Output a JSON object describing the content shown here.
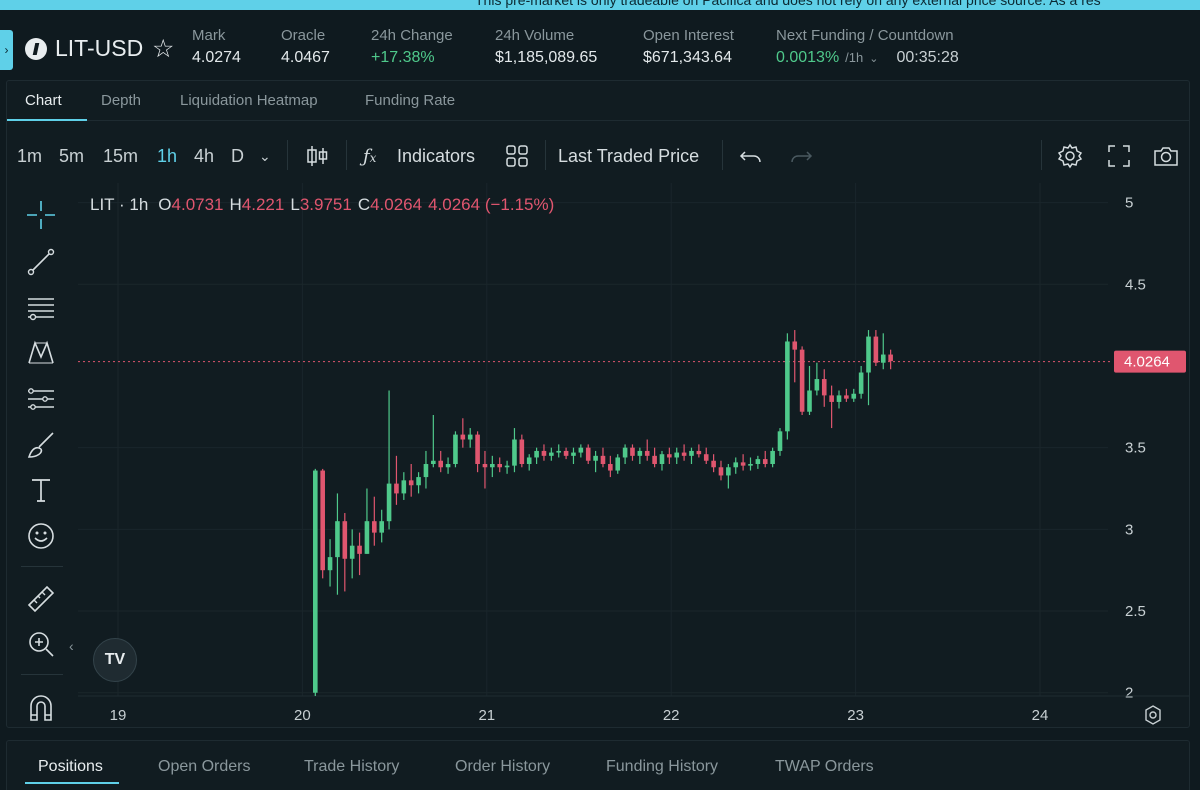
{
  "banner": {
    "text": "This pre-market is only tradeable on Pacifica and does not rely on any external price source. As a res"
  },
  "market": {
    "pair": "LIT-USD",
    "stats": [
      {
        "label": "Mark",
        "value": "4.0274"
      },
      {
        "label": "Oracle",
        "value": "4.0467"
      },
      {
        "label": "24h Change",
        "value": "+17.38%"
      },
      {
        "label": "24h Volume",
        "value": "$1,185,089.65"
      },
      {
        "label": "Open Interest",
        "value": "$671,343.64"
      }
    ],
    "funding": {
      "label": "Next Funding / Countdown",
      "rate": "0.0013%",
      "unit": "/1h",
      "countdown": "00:35:28"
    }
  },
  "tabs": [
    "Chart",
    "Depth",
    "Liquidation Heatmap",
    "Funding Rate"
  ],
  "toolbar": {
    "timeframes": [
      "1m",
      "5m",
      "15m",
      "1h",
      "4h",
      "D"
    ],
    "active_timeframe": "1h",
    "indicators_label": "Indicators",
    "price_source": "Last Traded Price"
  },
  "legend": {
    "symbol": "LIT · 1h",
    "o_key": "O",
    "open": "4.0731",
    "h_key": "H",
    "high": "4.221",
    "l_key": "L",
    "low": "3.9751",
    "c_key": "C",
    "close": "4.0264",
    "change": "4.0264 (−1.15%)"
  },
  "chart_data": {
    "type": "candlestick",
    "title": "",
    "x_ticks": [
      "19",
      "20",
      "21",
      "22",
      "23",
      "24"
    ],
    "y_ticks": [
      "5",
      "4.5",
      "3.5",
      "3",
      "2.5",
      "2"
    ],
    "ylim": [
      1.98,
      5.12
    ],
    "last_price": "4.0264",
    "colors": {
      "up": "#4fc98b",
      "down": "#e0566f"
    },
    "candles": [
      {
        "t": 20.07,
        "o": 2.0,
        "h": 3.37,
        "l": 1.98,
        "c": 3.36
      },
      {
        "t": 20.11,
        "o": 3.36,
        "h": 3.37,
        "l": 2.7,
        "c": 2.75
      },
      {
        "t": 20.15,
        "o": 2.75,
        "h": 2.94,
        "l": 2.65,
        "c": 2.83
      },
      {
        "t": 20.19,
        "o": 2.83,
        "h": 3.22,
        "l": 2.6,
        "c": 3.05
      },
      {
        "t": 20.23,
        "o": 3.05,
        "h": 3.1,
        "l": 2.62,
        "c": 2.82
      },
      {
        "t": 20.27,
        "o": 2.82,
        "h": 3.0,
        "l": 2.7,
        "c": 2.9
      },
      {
        "t": 20.31,
        "o": 2.9,
        "h": 2.98,
        "l": 2.72,
        "c": 2.85
      },
      {
        "t": 20.35,
        "o": 2.85,
        "h": 3.25,
        "l": 2.85,
        "c": 3.05
      },
      {
        "t": 20.39,
        "o": 3.05,
        "h": 3.2,
        "l": 2.9,
        "c": 2.98
      },
      {
        "t": 20.43,
        "o": 2.98,
        "h": 3.12,
        "l": 2.92,
        "c": 3.05
      },
      {
        "t": 20.47,
        "o": 3.05,
        "h": 3.85,
        "l": 3.0,
        "c": 3.28
      },
      {
        "t": 20.51,
        "o": 3.28,
        "h": 3.45,
        "l": 3.15,
        "c": 3.22
      },
      {
        "t": 20.55,
        "o": 3.22,
        "h": 3.35,
        "l": 3.18,
        "c": 3.3
      },
      {
        "t": 20.59,
        "o": 3.3,
        "h": 3.4,
        "l": 3.2,
        "c": 3.27
      },
      {
        "t": 20.63,
        "o": 3.27,
        "h": 3.35,
        "l": 3.22,
        "c": 3.32
      },
      {
        "t": 20.67,
        "o": 3.32,
        "h": 3.48,
        "l": 3.25,
        "c": 3.4
      },
      {
        "t": 20.71,
        "o": 3.4,
        "h": 3.7,
        "l": 3.38,
        "c": 3.42
      },
      {
        "t": 20.75,
        "o": 3.42,
        "h": 3.48,
        "l": 3.35,
        "c": 3.38
      },
      {
        "t": 20.79,
        "o": 3.38,
        "h": 3.44,
        "l": 3.34,
        "c": 3.4
      },
      {
        "t": 20.83,
        "o": 3.4,
        "h": 3.6,
        "l": 3.38,
        "c": 3.58
      },
      {
        "t": 20.87,
        "o": 3.58,
        "h": 3.68,
        "l": 3.5,
        "c": 3.55
      },
      {
        "t": 20.91,
        "o": 3.55,
        "h": 3.62,
        "l": 3.5,
        "c": 3.58
      },
      {
        "t": 20.95,
        "o": 3.58,
        "h": 3.6,
        "l": 3.35,
        "c": 3.4
      },
      {
        "t": 20.99,
        "o": 3.4,
        "h": 3.48,
        "l": 3.25,
        "c": 3.38
      },
      {
        "t": 21.03,
        "o": 3.38,
        "h": 3.45,
        "l": 3.32,
        "c": 3.4
      },
      {
        "t": 21.07,
        "o": 3.4,
        "h": 3.44,
        "l": 3.35,
        "c": 3.38
      },
      {
        "t": 21.11,
        "o": 3.38,
        "h": 3.42,
        "l": 3.34,
        "c": 3.39
      },
      {
        "t": 21.15,
        "o": 3.39,
        "h": 3.62,
        "l": 3.35,
        "c": 3.55
      },
      {
        "t": 21.19,
        "o": 3.55,
        "h": 3.58,
        "l": 3.38,
        "c": 3.4
      },
      {
        "t": 21.23,
        "o": 3.4,
        "h": 3.46,
        "l": 3.36,
        "c": 3.44
      },
      {
        "t": 21.27,
        "o": 3.44,
        "h": 3.5,
        "l": 3.4,
        "c": 3.48
      },
      {
        "t": 21.31,
        "o": 3.48,
        "h": 3.52,
        "l": 3.42,
        "c": 3.45
      },
      {
        "t": 21.35,
        "o": 3.45,
        "h": 3.5,
        "l": 3.42,
        "c": 3.47
      },
      {
        "t": 21.39,
        "o": 3.47,
        "h": 3.52,
        "l": 3.44,
        "c": 3.48
      },
      {
        "t": 21.43,
        "o": 3.48,
        "h": 3.5,
        "l": 3.43,
        "c": 3.45
      },
      {
        "t": 21.47,
        "o": 3.45,
        "h": 3.5,
        "l": 3.4,
        "c": 3.47
      },
      {
        "t": 21.51,
        "o": 3.47,
        "h": 3.52,
        "l": 3.44,
        "c": 3.5
      },
      {
        "t": 21.55,
        "o": 3.5,
        "h": 3.52,
        "l": 3.4,
        "c": 3.42
      },
      {
        "t": 21.59,
        "o": 3.42,
        "h": 3.48,
        "l": 3.35,
        "c": 3.45
      },
      {
        "t": 21.63,
        "o": 3.45,
        "h": 3.5,
        "l": 3.38,
        "c": 3.4
      },
      {
        "t": 21.67,
        "o": 3.4,
        "h": 3.45,
        "l": 3.32,
        "c": 3.36
      },
      {
        "t": 21.71,
        "o": 3.36,
        "h": 3.46,
        "l": 3.34,
        "c": 3.44
      },
      {
        "t": 21.75,
        "o": 3.44,
        "h": 3.52,
        "l": 3.4,
        "c": 3.5
      },
      {
        "t": 21.79,
        "o": 3.5,
        "h": 3.52,
        "l": 3.42,
        "c": 3.45
      },
      {
        "t": 21.83,
        "o": 3.45,
        "h": 3.5,
        "l": 3.4,
        "c": 3.48
      },
      {
        "t": 21.87,
        "o": 3.48,
        "h": 3.55,
        "l": 3.42,
        "c": 3.45
      },
      {
        "t": 21.91,
        "o": 3.45,
        "h": 3.5,
        "l": 3.38,
        "c": 3.4
      },
      {
        "t": 21.95,
        "o": 3.4,
        "h": 3.48,
        "l": 3.36,
        "c": 3.46
      },
      {
        "t": 21.99,
        "o": 3.46,
        "h": 3.5,
        "l": 3.4,
        "c": 3.44
      },
      {
        "t": 22.03,
        "o": 3.44,
        "h": 3.5,
        "l": 3.4,
        "c": 3.47
      },
      {
        "t": 22.07,
        "o": 3.47,
        "h": 3.52,
        "l": 3.42,
        "c": 3.45
      },
      {
        "t": 22.11,
        "o": 3.45,
        "h": 3.5,
        "l": 3.4,
        "c": 3.48
      },
      {
        "t": 22.15,
        "o": 3.48,
        "h": 3.52,
        "l": 3.44,
        "c": 3.46
      },
      {
        "t": 22.19,
        "o": 3.46,
        "h": 3.5,
        "l": 3.4,
        "c": 3.42
      },
      {
        "t": 22.23,
        "o": 3.42,
        "h": 3.46,
        "l": 3.35,
        "c": 3.38
      },
      {
        "t": 22.27,
        "o": 3.38,
        "h": 3.42,
        "l": 3.3,
        "c": 3.33
      },
      {
        "t": 22.31,
        "o": 3.33,
        "h": 3.4,
        "l": 3.25,
        "c": 3.38
      },
      {
        "t": 22.35,
        "o": 3.38,
        "h": 3.44,
        "l": 3.34,
        "c": 3.41
      },
      {
        "t": 22.39,
        "o": 3.41,
        "h": 3.46,
        "l": 3.36,
        "c": 3.39
      },
      {
        "t": 22.43,
        "o": 3.39,
        "h": 3.44,
        "l": 3.36,
        "c": 3.4
      },
      {
        "t": 22.47,
        "o": 3.4,
        "h": 3.45,
        "l": 3.37,
        "c": 3.43
      },
      {
        "t": 22.51,
        "o": 3.43,
        "h": 3.48,
        "l": 3.38,
        "c": 3.4
      },
      {
        "t": 22.55,
        "o": 3.4,
        "h": 3.5,
        "l": 3.38,
        "c": 3.48
      },
      {
        "t": 22.59,
        "o": 3.48,
        "h": 3.62,
        "l": 3.45,
        "c": 3.6
      },
      {
        "t": 22.63,
        "o": 3.6,
        "h": 4.2,
        "l": 3.55,
        "c": 4.15
      },
      {
        "t": 22.67,
        "o": 4.15,
        "h": 4.22,
        "l": 3.9,
        "c": 4.1
      },
      {
        "t": 22.71,
        "o": 4.1,
        "h": 4.12,
        "l": 3.7,
        "c": 3.72
      },
      {
        "t": 22.75,
        "o": 3.72,
        "h": 4.0,
        "l": 3.7,
        "c": 3.85
      },
      {
        "t": 22.79,
        "o": 3.85,
        "h": 4.02,
        "l": 3.82,
        "c": 3.92
      },
      {
        "t": 22.83,
        "o": 3.92,
        "h": 3.98,
        "l": 3.75,
        "c": 3.82
      },
      {
        "t": 22.87,
        "o": 3.82,
        "h": 3.88,
        "l": 3.62,
        "c": 3.78
      },
      {
        "t": 22.91,
        "o": 3.78,
        "h": 3.85,
        "l": 3.74,
        "c": 3.82
      },
      {
        "t": 22.95,
        "o": 3.82,
        "h": 3.86,
        "l": 3.78,
        "c": 3.8
      },
      {
        "t": 22.99,
        "o": 3.8,
        "h": 3.86,
        "l": 3.78,
        "c": 3.83
      },
      {
        "t": 23.03,
        "o": 3.83,
        "h": 4.0,
        "l": 3.8,
        "c": 3.96
      },
      {
        "t": 23.07,
        "o": 3.96,
        "h": 4.22,
        "l": 3.76,
        "c": 4.18
      },
      {
        "t": 23.11,
        "o": 4.18,
        "h": 4.22,
        "l": 4.0,
        "c": 4.02
      },
      {
        "t": 23.15,
        "o": 4.02,
        "h": 4.2,
        "l": 3.98,
        "c": 4.07
      },
      {
        "t": 23.19,
        "o": 4.07,
        "h": 4.1,
        "l": 3.98,
        "c": 4.03
      }
    ]
  },
  "bottom_tabs": [
    "Positions",
    "Open Orders",
    "Trade History",
    "Order History",
    "Funding History",
    "TWAP Orders"
  ]
}
